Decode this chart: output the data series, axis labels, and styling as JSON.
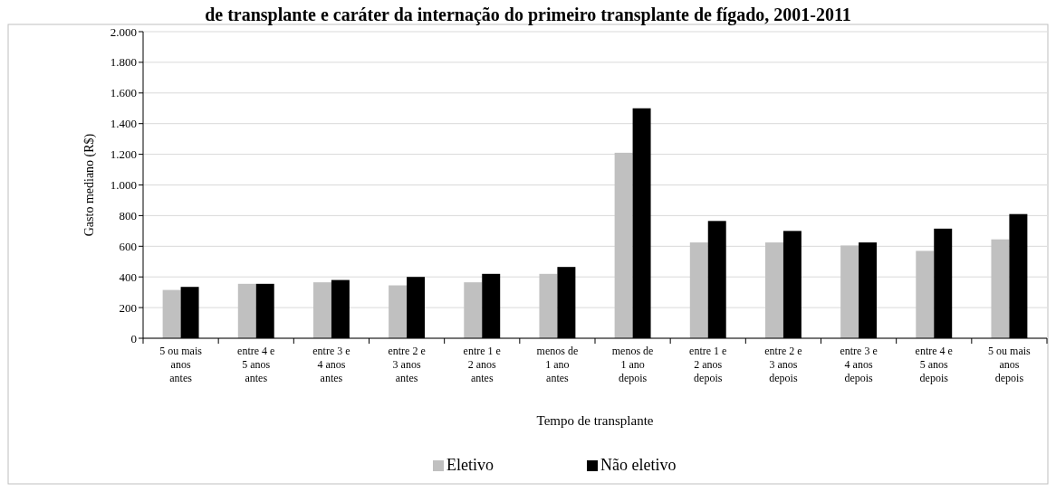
{
  "chart_data": {
    "type": "bar",
    "title": "de transplante e caráter da internação do primeiro transplante de fígado, 2001-2011",
    "xlabel": "Tempo de transplante",
    "ylabel": "Gasto mediano (R$)",
    "categories": [
      "5 ou mais anos antes",
      "entre 4 e 5 anos antes",
      "entre 3 e 4 anos antes",
      "entre 2 e 3 anos antes",
      "entre 1 e 2 anos antes",
      "menos de 1 ano antes",
      "menos de 1 ano depois",
      "entre 1 e 2 anos depois",
      "entre 2 e 3 anos depois",
      "entre 3 e 4 anos depois",
      "entre 4 e 5 anos depois",
      "5 ou mais anos depois"
    ],
    "series": [
      {
        "name": "Eletivo",
        "color": "#c0c0c0",
        "values": [
          315,
          355,
          365,
          345,
          365,
          420,
          1210,
          625,
          625,
          605,
          570,
          645
        ]
      },
      {
        "name": "Não eletivo",
        "color": "#000000",
        "values": [
          335,
          355,
          380,
          400,
          420,
          465,
          1500,
          765,
          700,
          625,
          715,
          810
        ]
      }
    ],
    "ylim": [
      0,
      2000
    ],
    "yticks": [
      0,
      200,
      400,
      600,
      800,
      {
        "value": 1000,
        "label": "1.000"
      },
      {
        "value": 1200,
        "label": "1.200"
      },
      {
        "value": 1400,
        "label": "1.400"
      },
      {
        "value": 1600,
        "label": "1.600"
      },
      {
        "value": 1800,
        "label": "1.800"
      },
      {
        "value": 2000,
        "label": "2.000"
      }
    ],
    "grid": "y",
    "legend": "bottom"
  }
}
